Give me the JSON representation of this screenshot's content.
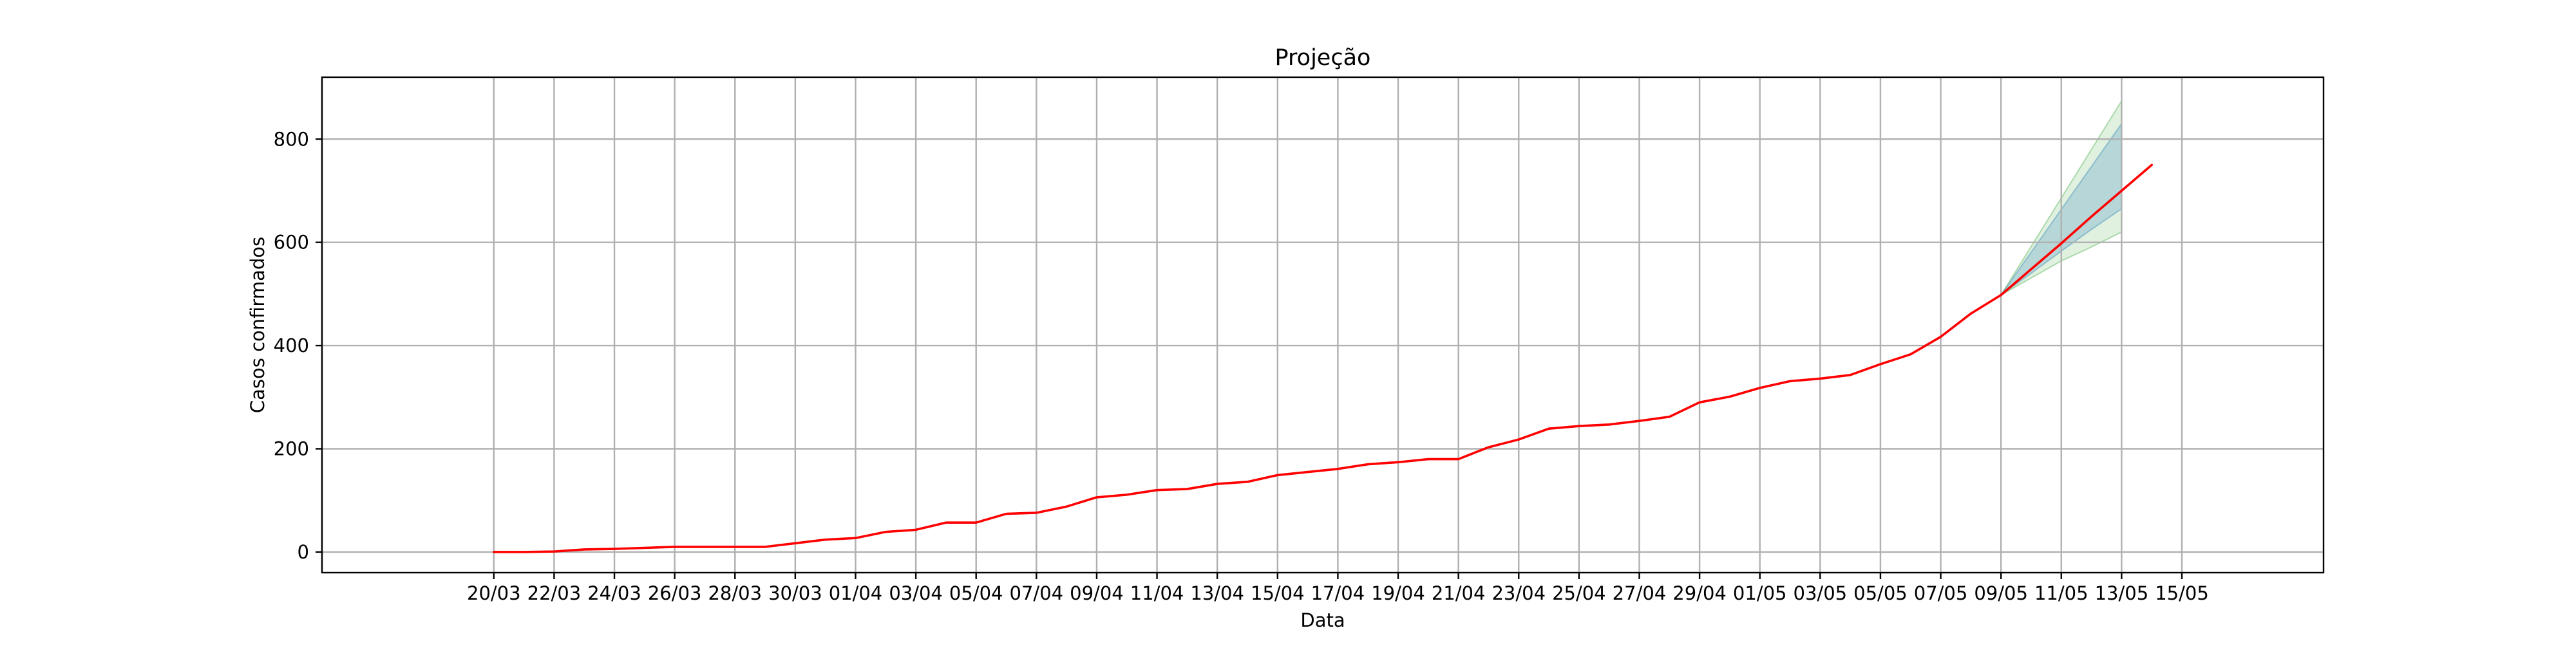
{
  "chart_data": {
    "type": "line",
    "title": "Projeção",
    "xlabel": "Data",
    "ylabel": "Casos confirmados",
    "grid": true,
    "ylim": [
      -40,
      920
    ],
    "xlim": [
      -5.7,
      60.7
    ],
    "yticks": [
      0,
      200,
      400,
      600,
      800
    ],
    "x_tick_labels": [
      "20/03",
      "22/03",
      "24/03",
      "26/03",
      "28/03",
      "30/03",
      "01/04",
      "03/04",
      "05/04",
      "07/04",
      "09/04",
      "11/04",
      "13/04",
      "15/04",
      "17/04",
      "19/04",
      "21/04",
      "23/04",
      "25/04",
      "27/04",
      "29/04",
      "01/05",
      "03/05",
      "05/05",
      "07/05",
      "09/05",
      "11/05",
      "13/05",
      "15/05"
    ],
    "series": [
      {
        "color": "#ff0000",
        "values": [
          0,
          0,
          1,
          5,
          6,
          8,
          10,
          10,
          10,
          10,
          17,
          24,
          27,
          39,
          43,
          57,
          57,
          74,
          76,
          88,
          106,
          111,
          120,
          122,
          132,
          136,
          149,
          155,
          161,
          170,
          174,
          180,
          180,
          203,
          218,
          239,
          244,
          247,
          254,
          262,
          290,
          301,
          318,
          331,
          336,
          343,
          364,
          383,
          417,
          462,
          498,
          548,
          598,
          650,
          700,
          750
        ]
      }
    ],
    "projection_bands": [
      {
        "color": "#2ca02c",
        "opacity": 0.15,
        "start_index": 50,
        "upper": [
          498,
          592,
          686,
          780,
          874
        ],
        "lower": [
          498,
          531,
          564,
          591,
          620
        ]
      },
      {
        "color": "#1f77b4",
        "opacity": 0.22,
        "start_index": 50,
        "upper": [
          498,
          581,
          664,
          747,
          830
        ],
        "lower": [
          498,
          540,
          583,
          625,
          665
        ]
      }
    ]
  }
}
